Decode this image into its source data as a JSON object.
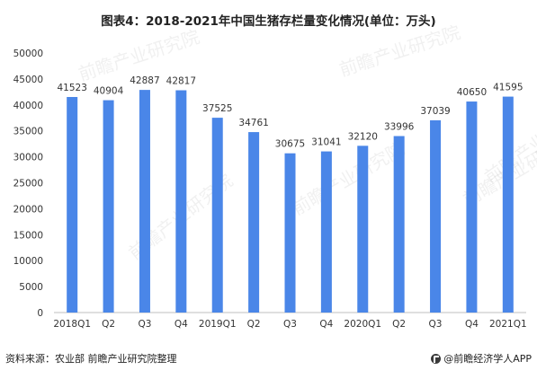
{
  "title": "图表4：2018-2021年中国生猪存栏量变化情况(单位：万头)",
  "source": "资料来源：农业部 前瞻产业研究院整理",
  "brand": "@前瞻经济学人APP",
  "watermark": "前瞻产业研究院",
  "bar_color": "#4a86e8",
  "chart_data": {
    "type": "bar",
    "title": "图表4：2018-2021年中国生猪存栏量变化情况(单位：万头)",
    "categories": [
      "2018Q1",
      "Q2",
      "Q3",
      "Q4",
      "2019Q1",
      "Q2",
      "Q3",
      "Q4",
      "2020Q1",
      "Q2",
      "Q3",
      "Q4",
      "2021Q1"
    ],
    "values": [
      41523,
      40904,
      42887,
      42817,
      37525,
      34761,
      30675,
      31041,
      32120,
      33996,
      37039,
      40650,
      41595
    ],
    "ylim": [
      0,
      50000
    ],
    "yticks": [
      0,
      5000,
      10000,
      15000,
      20000,
      25000,
      30000,
      35000,
      40000,
      45000,
      50000
    ],
    "xlabel": "",
    "ylabel": "",
    "grid": false,
    "data_labels": true
  }
}
